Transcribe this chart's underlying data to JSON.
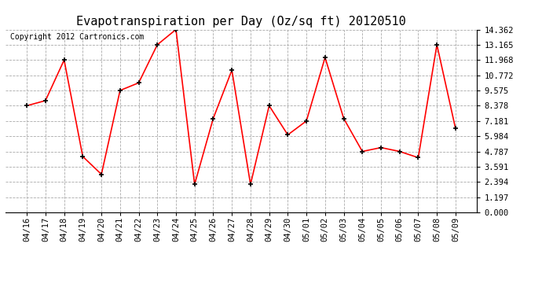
{
  "title": "Evapotranspiration per Day (Oz/sq ft) 20120510",
  "copyright": "Copyright 2012 Cartronics.com",
  "categories": [
    "04/16",
    "04/17",
    "04/18",
    "04/19",
    "04/20",
    "04/21",
    "04/22",
    "04/23",
    "04/24",
    "04/25",
    "04/26",
    "04/27",
    "04/28",
    "04/29",
    "04/30",
    "05/01",
    "05/02",
    "05/03",
    "05/04",
    "05/05",
    "05/06",
    "05/07",
    "05/08",
    "05/09"
  ],
  "values": [
    8.378,
    8.78,
    11.968,
    4.39,
    2.99,
    9.575,
    10.175,
    13.165,
    14.362,
    2.2,
    7.38,
    11.17,
    2.2,
    8.378,
    6.09,
    7.181,
    12.165,
    7.38,
    4.787,
    5.09,
    4.787,
    4.3,
    13.165,
    6.58
  ],
  "line_color": "#ff0000",
  "marker": "+",
  "marker_color": "#000000",
  "ylim": [
    0.0,
    14.362
  ],
  "yticks": [
    0.0,
    1.197,
    2.394,
    3.591,
    4.787,
    5.984,
    7.181,
    8.378,
    9.575,
    10.772,
    11.968,
    13.165,
    14.362
  ],
  "bg_color": "#ffffff",
  "grid_color": "#aaaaaa",
  "title_fontsize": 11,
  "copyright_fontsize": 7,
  "tick_fontsize": 7.5
}
